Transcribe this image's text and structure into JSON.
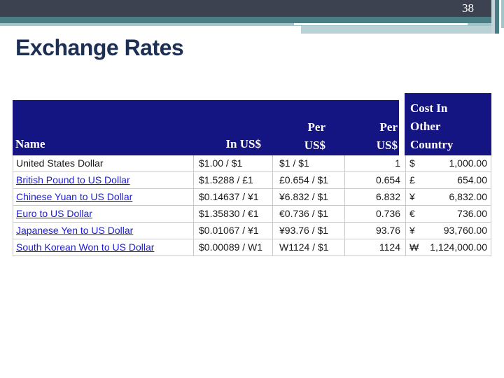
{
  "slide": {
    "page_number": "38",
    "title": "Exchange Rates"
  },
  "colors": {
    "banner_dark": "#3d4251",
    "banner_teal": "#4b7e84",
    "banner_light_teal": "#a5c4c8",
    "table_header_navy": "#141482",
    "title_navy": "#1d3054",
    "hyperlink_blue": "#1b1bdb"
  },
  "table": {
    "headers": {
      "name": "Name",
      "in_usd": "In US$",
      "per1_line1": "Per",
      "per1_line2": "US$",
      "per2_line1": "Per",
      "per2_line2": "US$",
      "cost_line1": "Cost In",
      "cost_line2": "Other",
      "cost_line3": "Country"
    },
    "rows": [
      {
        "name": "United States Dollar",
        "link": false,
        "in_usd": "$1.00 / $1",
        "per_usd": "$1 / $1",
        "per_value": "1",
        "symbol": "$",
        "cost": "1,000.00"
      },
      {
        "name": "British Pound to US Dollar",
        "link": true,
        "in_usd": "$1.5288 / £1",
        "per_usd": "£0.654 / $1",
        "per_value": "0.654",
        "symbol": "£",
        "cost": "654.00"
      },
      {
        "name": "Chinese Yuan to US Dollar",
        "link": true,
        "in_usd": "$0.14637 / ¥1",
        "per_usd": "¥6.832 / $1",
        "per_value": "6.832",
        "symbol": "¥",
        "cost": "6,832.00"
      },
      {
        "name": "Euro to US Dollar",
        "link": true,
        "in_usd": "$1.35830 / €1",
        "per_usd": "€0.736 / $1",
        "per_value": "0.736",
        "symbol": "€",
        "cost": "736.00"
      },
      {
        "name": "Japanese Yen to US Dollar",
        "link": true,
        "in_usd": "$0.01067 / ¥1",
        "per_usd": "¥93.76 / $1",
        "per_value": "93.76",
        "symbol": "¥",
        "cost": "93,760.00"
      },
      {
        "name": "South Korean Won to US Dollar",
        "link": true,
        "in_usd": "$0.00089 / W1",
        "per_usd": "W1124 / $1",
        "per_value": "1124",
        "symbol": "₩",
        "cost": "1,124,000.00"
      }
    ]
  }
}
